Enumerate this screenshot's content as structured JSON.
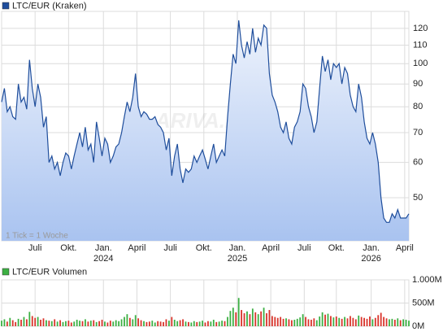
{
  "chart_data": [
    {
      "type": "line",
      "title": "LTC/EUR (Kraken)",
      "note": "1 Tick = 1 Woche",
      "watermark": "ARIVA.DE",
      "log_scale": true,
      "grid": true,
      "legend": "top-left",
      "series": [
        {
          "name": "LTC/EUR (Kraken)",
          "color": "#1f4e9c",
          "values": [
            82,
            88,
            78,
            80,
            76,
            75,
            90,
            82,
            84,
            79,
            102,
            88,
            80,
            90,
            84,
            72,
            76,
            60,
            62,
            58,
            60,
            56,
            60,
            63,
            62,
            58,
            62,
            66,
            70,
            65,
            72,
            64,
            66,
            60,
            74,
            68,
            62,
            68,
            66,
            60,
            62,
            65,
            66,
            70,
            76,
            82,
            78,
            84,
            95,
            80,
            76,
            78,
            77,
            75,
            75,
            76,
            73,
            72,
            70,
            64,
            68,
            56,
            62,
            66,
            58,
            54,
            58,
            57,
            58,
            62,
            60,
            62,
            64,
            61,
            58,
            62,
            66,
            60,
            62,
            64,
            62,
            76,
            90,
            105,
            100,
            125,
            110,
            103,
            112,
            105,
            120,
            106,
            114,
            110,
            122,
            120,
            95,
            85,
            82,
            78,
            72,
            70,
            74,
            68,
            66,
            72,
            74,
            78,
            90,
            88,
            80,
            76,
            70,
            74,
            88,
            104,
            96,
            102,
            92,
            100,
            98,
            100,
            90,
            98,
            95,
            85,
            80,
            78,
            90,
            84,
            74,
            68,
            66,
            70,
            66,
            60,
            50,
            45,
            44,
            44,
            46,
            45,
            47,
            45,
            45,
            45,
            46
          ]
        }
      ],
      "xlim": [
        0,
        146
      ],
      "xticks": [
        {
          "value": 12,
          "label": "Juli"
        },
        {
          "value": 24,
          "label": "Okt."
        },
        {
          "value": 36.5,
          "label": "Jan."
        },
        {
          "value": 48.5,
          "label": "April"
        },
        {
          "value": 60.5,
          "label": "Juli"
        },
        {
          "value": 72.5,
          "label": "Okt."
        },
        {
          "value": 84.5,
          "label": "Jan."
        },
        {
          "value": 96.5,
          "label": "April"
        },
        {
          "value": 108.5,
          "label": "Juli"
        },
        {
          "value": 120,
          "label": "Okt."
        },
        {
          "value": 132.5,
          "label": "Jan."
        },
        {
          "value": 144.5,
          "label": "April"
        }
      ],
      "xticks_year": [
        {
          "value": 36.5,
          "label": "2024"
        },
        {
          "value": 84.5,
          "label": "2025"
        },
        {
          "value": 132.5,
          "label": "2026"
        }
      ],
      "ylim": [
        40,
        131
      ],
      "yticks": [
        50,
        60,
        70,
        80,
        90,
        100,
        110,
        120
      ]
    },
    {
      "type": "bar",
      "title": "LTC/EUR Volumen",
      "legend_color": "#3cb043",
      "up_color": "#3cb043",
      "down_color": "#d9342b",
      "grid": true,
      "series": [
        {
          "name": "LTC/EUR Volumen",
          "values": [
            120,
            150,
            100,
            180,
            130,
            90,
            160,
            140,
            200,
            150,
            310,
            220,
            180,
            200,
            140,
            170,
            130,
            120,
            110,
            150,
            100,
            130,
            90,
            110,
            120,
            80,
            100,
            140,
            120,
            110,
            150,
            100,
            120,
            130,
            90,
            110,
            140,
            100,
            80,
            120,
            100,
            130,
            110,
            150,
            200,
            260,
            180,
            150,
            240,
            170,
            130,
            110,
            90,
            100,
            120,
            80,
            110,
            100,
            90,
            150,
            120,
            200,
            140,
            110,
            130,
            150,
            100,
            90,
            80,
            110,
            90,
            100,
            120,
            80,
            110,
            100,
            140,
            90,
            100,
            120,
            110,
            200,
            330,
            400,
            300,
            610,
            350,
            280,
            320,
            260,
            380,
            300,
            260,
            320,
            400,
            280,
            350,
            220,
            200,
            180,
            200,
            160,
            170,
            150,
            130,
            140,
            160,
            190,
            260,
            200,
            150,
            140,
            170,
            130,
            210,
            300,
            250,
            270,
            220,
            190,
            210,
            180,
            160,
            200,
            170,
            220,
            180,
            150,
            230,
            200,
            180,
            160,
            210,
            150,
            180,
            240,
            290,
            200,
            170,
            150,
            160,
            140,
            170,
            130,
            150,
            140,
            120
          ]
        }
      ],
      "ylim": [
        0,
        1000
      ],
      "yticks": [
        {
          "value": 0,
          "label": "0M"
        },
        {
          "value": 500,
          "label": "500M"
        },
        {
          "value": 1000,
          "label": "1.000M"
        }
      ]
    }
  ]
}
